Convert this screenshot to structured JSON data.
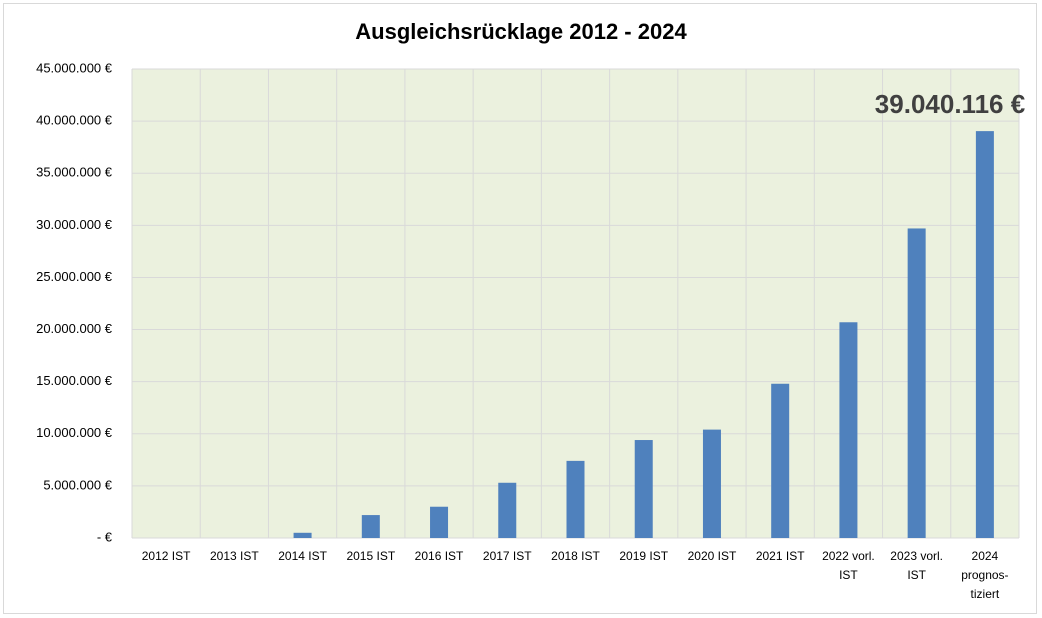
{
  "chart_data": {
    "type": "bar",
    "title": "Ausgleichsrücklage 2012 - 2024",
    "categories": [
      "2012 IST",
      "2013 IST",
      "2014 IST",
      "2015 IST",
      "2016 IST",
      "2017 IST",
      "2018 IST",
      "2019 IST",
      "2020 IST",
      "2021 IST",
      "2022 vorl.\nIST",
      "2023 vorl.\nIST",
      "2024\nprognos-\ntiziert"
    ],
    "values": [
      0,
      0,
      500000,
      2200000,
      3000000,
      5300000,
      7400000,
      9400000,
      10400000,
      14800000,
      20700000,
      29700000,
      39040116
    ],
    "value_labels": [
      null,
      null,
      null,
      null,
      null,
      null,
      null,
      null,
      null,
      null,
      null,
      null,
      "39.040.116 €"
    ],
    "color": "#4f81bd",
    "ylim": [
      0,
      45000000
    ],
    "yticks": [
      {
        "value": 0,
        "label": "-  €"
      },
      {
        "value": 5000000,
        "label": "5.000.000 €"
      },
      {
        "value": 10000000,
        "label": "10.000.000 €"
      },
      {
        "value": 15000000,
        "label": "15.000.000 €"
      },
      {
        "value": 20000000,
        "label": "20.000.000 €"
      },
      {
        "value": 25000000,
        "label": "25.000.000 €"
      },
      {
        "value": 30000000,
        "label": "30.000.000 €"
      },
      {
        "value": 35000000,
        "label": "35.000.000 €"
      },
      {
        "value": 40000000,
        "label": "40.000.000 €"
      },
      {
        "value": 45000000,
        "label": "45.000.000 €"
      }
    ],
    "grid": true
  }
}
